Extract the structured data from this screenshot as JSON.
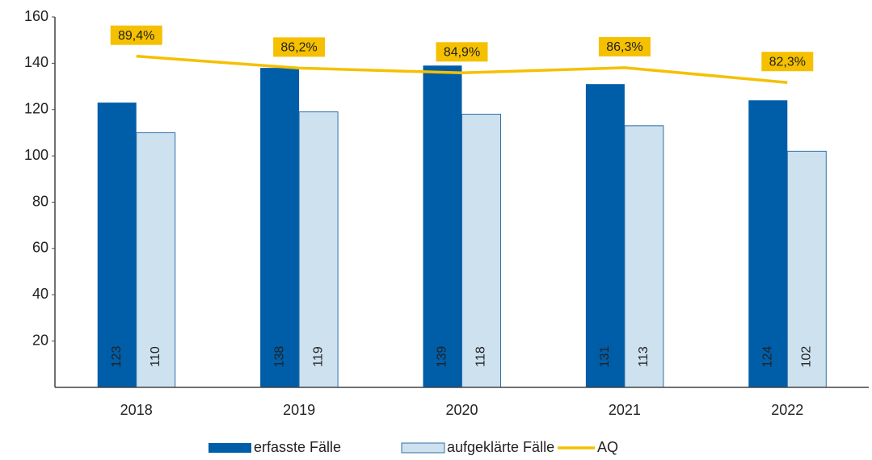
{
  "chart_data": {
    "type": "bar",
    "categories": [
      "2018",
      "2019",
      "2020",
      "2021",
      "2022"
    ],
    "series": [
      {
        "name": "erfasste Fälle",
        "color": "#005da8",
        "values": [
          123,
          138,
          139,
          131,
          124
        ]
      },
      {
        "name": "aufgeklärte Fälle",
        "color": "#cde1ef",
        "values": [
          110,
          119,
          118,
          113,
          102
        ]
      },
      {
        "name": "AQ",
        "type": "line",
        "axis": "y2",
        "color": "#f5c000",
        "values": [
          89.4,
          86.2,
          84.9,
          86.3,
          82.3
        ],
        "value_labels": [
          "89,4%",
          "86,2%",
          "84,9%",
          "86,3%",
          "82,3%"
        ]
      }
    ],
    "ylim": [
      0,
      160
    ],
    "yticks": [
      20,
      40,
      60,
      80,
      100,
      120,
      140,
      160
    ],
    "y2lim": [
      0,
      100
    ],
    "legend": "bottom"
  }
}
